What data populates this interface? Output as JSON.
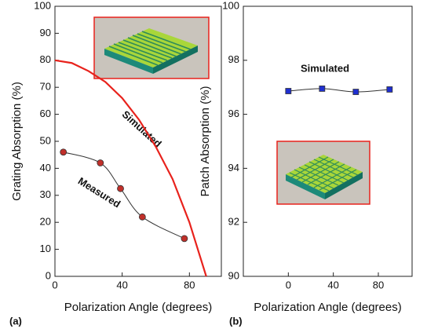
{
  "chart_data": [
    {
      "type": "line",
      "panel_label": "(a)",
      "x_label": "Polarization Angle (degrees)",
      "y_label": "Grating Absorption (%)",
      "xlim": [
        0,
        99
      ],
      "xticks": [
        0,
        40,
        80
      ],
      "ylim": [
        0,
        100
      ],
      "yticks": [
        0,
        10,
        20,
        30,
        40,
        50,
        60,
        70,
        80,
        90,
        100
      ],
      "series": [
        {
          "name": "Simulated",
          "color": "#e8221c",
          "marker": "none",
          "smooth": false,
          "x": [
            0,
            10,
            20,
            30,
            40,
            50,
            60,
            70,
            80,
            90
          ],
          "values": [
            80,
            79,
            76,
            72,
            66,
            58,
            48,
            36,
            20,
            0
          ]
        },
        {
          "name": "Measured",
          "color": "#c0302a",
          "marker": "circle",
          "smooth": true,
          "x": [
            5,
            27,
            39,
            52,
            77
          ],
          "values": [
            46,
            42,
            32.5,
            22,
            14
          ]
        }
      ]
    },
    {
      "type": "line",
      "panel_label": "(b)",
      "x_label": "Polarization Angle (degrees)",
      "y_label": "Patch Absorption (%)",
      "xlim": [
        -40,
        110
      ],
      "xticks": [
        0,
        40,
        80
      ],
      "ylim": [
        90,
        100
      ],
      "yticks": [
        90,
        92,
        94,
        96,
        98,
        100
      ],
      "series": [
        {
          "name": "Simulated",
          "color": "#1f2fd0",
          "marker": "square",
          "smooth": true,
          "x": [
            0,
            30,
            60,
            90
          ],
          "values": [
            96.86,
            96.95,
            96.83,
            96.92
          ]
        }
      ]
    }
  ]
}
